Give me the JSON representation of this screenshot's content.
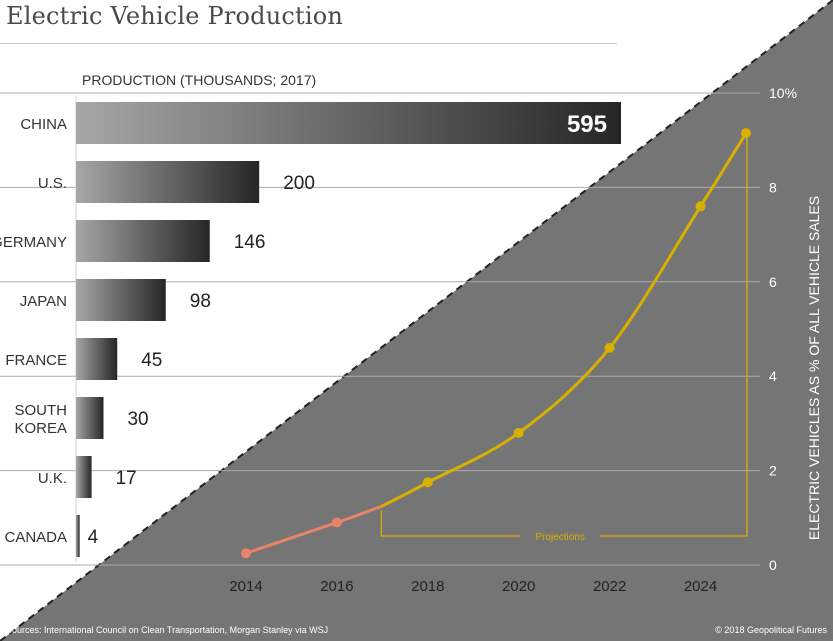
{
  "title": "Electric Vehicle Production",
  "bar_axis_title": "PRODUCTION (THOUSANDS; 2017)",
  "line_y_axis_title": "ELECTRIC  VEHICLES AS % OF ALL VEHICLE SALES",
  "projections_label": "Projections",
  "sources": "Sources: International Council on Clean Transportation, Morgan Stanley via WSJ",
  "copyright": "© 2018 Geopolitical Futures",
  "colors": {
    "background_dark": "#757575",
    "line_actual": "#e8836a",
    "line_projection": "#d8b000",
    "bar_light": "#a6a6a6",
    "bar_dark": "#262626"
  },
  "chart_data": [
    {
      "type": "bar",
      "orientation": "horizontal",
      "categories": [
        "CHINA",
        "U.S.",
        "GERMANY",
        "JAPAN",
        "FRANCE",
        "SOUTH KOREA",
        "U.K.",
        "CANADA"
      ],
      "category_lines": [
        [
          "CHINA"
        ],
        [
          "U.S."
        ],
        [
          "GERMANY"
        ],
        [
          "JAPAN"
        ],
        [
          "FRANCE"
        ],
        [
          "SOUTH",
          "KOREA"
        ],
        [
          "U.K."
        ],
        [
          "CANADA"
        ]
      ],
      "values": [
        595,
        200,
        146,
        98,
        45,
        30,
        17,
        4
      ],
      "value_labels": [
        "595",
        "200",
        "146",
        "98",
        "45",
        "30",
        "17",
        "4"
      ],
      "xlabel": "PRODUCTION (THOUSANDS; 2017)"
    },
    {
      "type": "line",
      "x": [
        2014,
        2016,
        2018,
        2020,
        2022,
        2024,
        2025
      ],
      "series": [
        {
          "x": [
            2014,
            2016,
            2017
          ],
          "values": [
            0.25,
            0.9,
            1.25
          ]
        },
        {
          "x": [
            2017,
            2018,
            2020,
            2022,
            2024,
            2025
          ],
          "values": [
            1.25,
            1.75,
            2.8,
            4.6,
            7.6,
            9.15
          ]
        }
      ],
      "markers": {
        "x": [
          2014,
          2016,
          2018,
          2020,
          2022,
          2024,
          2025
        ],
        "values": [
          0.25,
          0.9,
          1.75,
          2.8,
          4.6,
          7.6,
          9.15
        ]
      },
      "xticks": [
        "2014",
        "2016",
        "2018",
        "2020",
        "2022",
        "2024"
      ],
      "yticks": [
        "0",
        "2",
        "4",
        "6",
        "8",
        "10%"
      ],
      "ylim": [
        0,
        10
      ],
      "xlim": [
        2013,
        2025
      ],
      "ylabel": "ELECTRIC  VEHICLES AS % OF ALL VEHICLE SALES",
      "projection_range": [
        2017,
        2025
      ],
      "grid": true
    }
  ]
}
